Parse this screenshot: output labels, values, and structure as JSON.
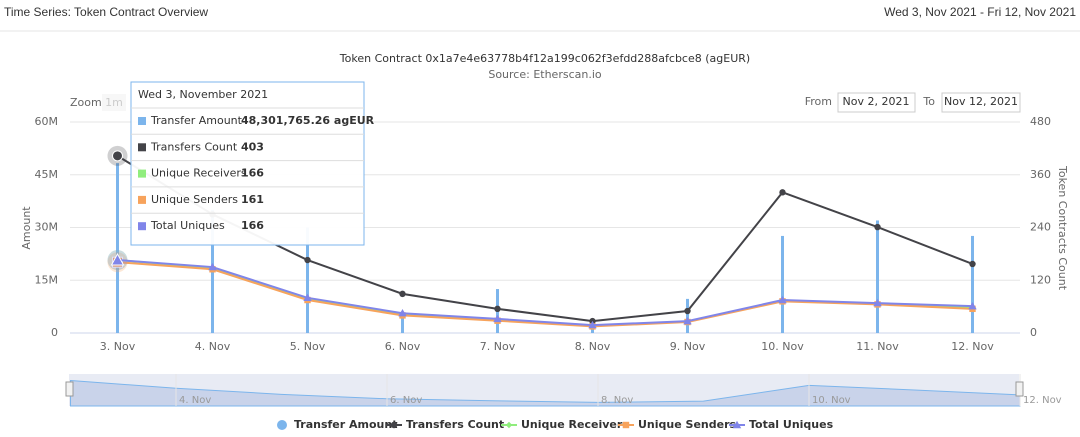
{
  "header": {
    "title": "Time Series: Token Contract Overview",
    "date_range": "Wed 3, Nov 2021 - Fri 12, Nov 2021"
  },
  "controls": {
    "zoom_label": "Zoom",
    "zoom_button": "1m",
    "from_label": "From",
    "from_value": "Nov 2, 2021",
    "to_label": "To",
    "to_value": "Nov 12, 2021"
  },
  "tooltip": {
    "date": "Wed 3, November 2021",
    "amount_label": "48,301,765.26 agEUR"
  },
  "chart_data": {
    "type": "combo",
    "title": "Token Contract 0x1a7e4e63778b4f12a199c062f3efdd288afcbce8 (agEUR)",
    "subtitle": "Source: Etherscan.io",
    "y_label": "Amount",
    "y2_label": "Token Contracts Count",
    "categories": [
      "3. Nov",
      "4. Nov",
      "5. Nov",
      "6. Nov",
      "7. Nov",
      "8. Nov",
      "9. Nov",
      "10. Nov",
      "11. Nov",
      "12. Nov"
    ],
    "ylim": [
      0,
      60000000
    ],
    "yticks": [
      0,
      {
        "value": 15000000,
        "label": "15M"
      },
      {
        "value": 30000000,
        "label": "30M"
      },
      {
        "value": 45000000,
        "label": "45M"
      },
      {
        "value": 60000000,
        "label": "60M"
      }
    ],
    "y2lim": [
      0,
      480
    ],
    "y2ticks": [
      0,
      120,
      240,
      360,
      480
    ],
    "grid": true,
    "legend": "bottom",
    "series": [
      {
        "name": "Transfer Amount",
        "type": "bar",
        "color": "#7cb5ec",
        "values": [
          48301765.26,
          35000000,
          30000000,
          5000000,
          12500000,
          1000000,
          9700000,
          27600000,
          32000000,
          27600000
        ]
      },
      {
        "name": "Transfers Count",
        "type": "line",
        "axis": "y2",
        "color": "#434348",
        "values": [
          403,
          270,
          166,
          89,
          55,
          27,
          50,
          320,
          241,
          157
        ]
      },
      {
        "name": "Unique Receivers",
        "type": "line",
        "axis": "y2",
        "color": "#90ed7d",
        "values": [
          166,
          148,
          78,
          43,
          30,
          17,
          26,
          74,
          67,
          58
        ]
      },
      {
        "name": "Unique Senders",
        "type": "line",
        "axis": "y2",
        "color": "#f7a35c",
        "values": [
          161,
          145,
          75,
          40,
          28,
          15,
          25,
          72,
          65,
          55
        ]
      },
      {
        "name": "Total Uniques",
        "type": "line",
        "axis": "y2",
        "color": "#8085e9",
        "values": [
          166,
          150,
          80,
          45,
          32,
          18,
          27,
          75,
          68,
          61
        ]
      }
    ]
  }
}
